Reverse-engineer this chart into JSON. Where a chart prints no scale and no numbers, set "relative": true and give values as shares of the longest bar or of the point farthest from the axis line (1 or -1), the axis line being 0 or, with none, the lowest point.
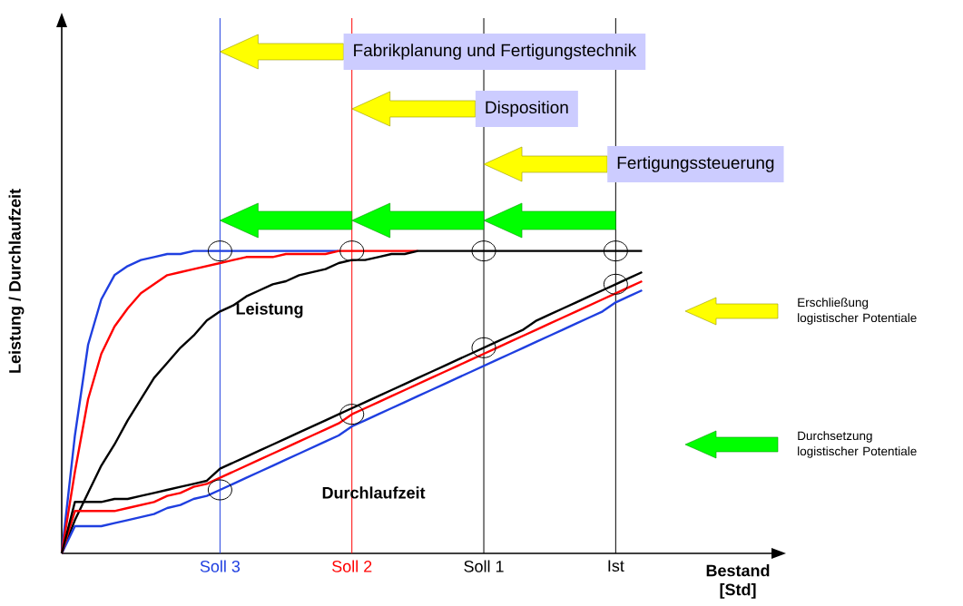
{
  "chart_data": {
    "type": "line",
    "relative": true,
    "ylabel": "Leistung / Durchlaufzeit",
    "xlabel": "Bestand [Std]",
    "categories": [
      null,
      null,
      null,
      null,
      null,
      null,
      null,
      null,
      null,
      null,
      null,
      null,
      "Soll 3",
      null,
      null,
      null,
      null,
      null,
      null,
      null,
      null,
      null,
      "Soll 2",
      null,
      null,
      null,
      null,
      null,
      null,
      null,
      null,
      null,
      "Soll 1",
      null,
      null,
      null,
      null,
      null,
      null,
      null,
      null,
      null,
      "Ist",
      null,
      null
    ],
    "series": [
      {
        "color": "#1f3fe0",
        "values": [
          0,
          0.39,
          0.69,
          0.84,
          0.92,
          0.95,
          0.97,
          0.98,
          0.99,
          0.99,
          1,
          1,
          1,
          1,
          1,
          1,
          1,
          1,
          1,
          1,
          1,
          1,
          null,
          null,
          null,
          null,
          null,
          null,
          null,
          null,
          null,
          null,
          null,
          null,
          null,
          null,
          null,
          null,
          null,
          null,
          null,
          null,
          null,
          null,
          null
        ]
      },
      {
        "color": "#ff0000",
        "values": [
          0,
          0.27,
          0.51,
          0.66,
          0.75,
          0.81,
          0.86,
          0.89,
          0.92,
          0.93,
          0.94,
          0.95,
          0.96,
          0.97,
          0.98,
          0.98,
          0.98,
          0.99,
          0.99,
          0.99,
          0.99,
          1,
          1,
          1,
          1,
          1,
          1,
          1,
          null,
          null,
          null,
          null,
          null,
          null,
          null,
          null,
          null,
          null,
          null,
          null,
          null,
          null,
          null,
          null,
          null
        ]
      },
      {
        "color": "#000000",
        "values": [
          0,
          0.11,
          0.2,
          0.29,
          0.36,
          0.44,
          0.51,
          0.58,
          0.63,
          0.68,
          0.72,
          0.77,
          0.8,
          0.82,
          0.85,
          0.87,
          0.89,
          0.9,
          0.92,
          0.93,
          0.94,
          0.96,
          0.97,
          0.97,
          0.98,
          0.99,
          0.99,
          1,
          1,
          1,
          1,
          1,
          1,
          1,
          1,
          1,
          1,
          1,
          1,
          1,
          1,
          1,
          1,
          1,
          1
        ]
      },
      {
        "color": "#1f3fe0",
        "values": [
          0,
          0.09,
          0.09,
          0.09,
          0.1,
          0.11,
          0.12,
          0.13,
          0.15,
          0.16,
          0.18,
          0.19,
          0.21,
          0.23,
          0.25,
          0.27,
          0.29,
          0.31,
          0.33,
          0.35,
          0.37,
          0.39,
          0.42,
          0.44,
          0.46,
          0.48,
          0.5,
          0.52,
          0.54,
          0.56,
          0.58,
          0.6,
          0.62,
          0.64,
          0.66,
          0.68,
          0.7,
          0.72,
          0.74,
          0.76,
          0.78,
          0.8,
          0.83,
          0.85,
          0.87
        ]
      },
      {
        "color": "#ff0000",
        "values": [
          0,
          0.14,
          0.14,
          0.14,
          0.14,
          0.15,
          0.16,
          0.17,
          0.19,
          0.2,
          0.22,
          0.23,
          0.25,
          0.27,
          0.29,
          0.31,
          0.33,
          0.35,
          0.37,
          0.39,
          0.41,
          0.43,
          0.46,
          0.48,
          0.5,
          0.52,
          0.54,
          0.56,
          0.58,
          0.6,
          0.62,
          0.64,
          0.66,
          0.68,
          0.7,
          0.72,
          0.74,
          0.76,
          0.78,
          0.8,
          0.82,
          0.84,
          0.86,
          0.88,
          0.9
        ]
      },
      {
        "color": "#000000",
        "values": [
          0,
          0.17,
          0.17,
          0.17,
          0.18,
          0.18,
          0.19,
          0.2,
          0.21,
          0.22,
          0.23,
          0.24,
          0.28,
          0.3,
          0.32,
          0.34,
          0.36,
          0.38,
          0.4,
          0.42,
          0.44,
          0.46,
          0.48,
          0.5,
          0.52,
          0.54,
          0.56,
          0.58,
          0.6,
          0.62,
          0.64,
          0.66,
          0.68,
          0.7,
          0.72,
          0.74,
          0.77,
          0.79,
          0.81,
          0.83,
          0.85,
          0.87,
          0.89,
          0.91,
          0.93
        ]
      }
    ],
    "ref_lines": [
      {
        "axis": "x",
        "value": "Soll 3",
        "color": "#1f3fe0"
      },
      {
        "axis": "x",
        "value": "Soll 2",
        "color": "#ff0000"
      },
      {
        "axis": "x",
        "value": "Soll 1",
        "color": "#000000"
      },
      {
        "axis": "x",
        "value": "Ist",
        "color": "#000000"
      }
    ],
    "annotations": [
      "Leistung",
      "Durchlaufzeit",
      "Fabrikplanung und Fertigungstechnik",
      "Disposition",
      "Fertigungssteuerung",
      "Erschließung logistischer Potentiale",
      "Durchsetzung logistischer Potentiale"
    ]
  }
}
